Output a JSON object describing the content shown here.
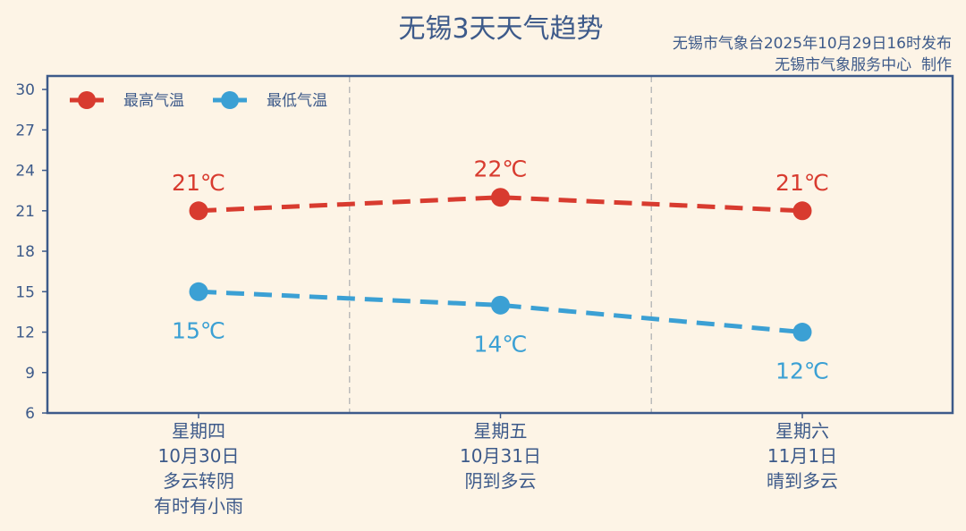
{
  "header": {
    "title": "无锡3天天气趋势",
    "issuer_line": "无锡市气象台2025年10月29日16时发布",
    "producer_line": "无锡市气象服务中心  制作"
  },
  "legend": {
    "high_label": "最高气温",
    "low_label": "最低气温"
  },
  "colors": {
    "background": "#fdf4e6",
    "frame": "#3d5a8a",
    "text": "#3d5a8a",
    "high": "#d83b2f",
    "low": "#3ba0d4",
    "separator": "#bbbbbb"
  },
  "chart_data": {
    "type": "line",
    "categories": [
      {
        "weekday": "星期四",
        "date": "10月30日",
        "weather": [
          "多云转阴",
          "有时有小雨"
        ]
      },
      {
        "weekday": "星期五",
        "date": "10月31日",
        "weather": [
          "阴到多云"
        ]
      },
      {
        "weekday": "星期六",
        "date": "11月1日",
        "weather": [
          "晴到多云"
        ]
      }
    ],
    "series": [
      {
        "name": "最高气温",
        "key": "high",
        "values": [
          21,
          22,
          21
        ],
        "labels": [
          "21℃",
          "22℃",
          "21℃"
        ],
        "label_position": "above"
      },
      {
        "name": "最低气温",
        "key": "low",
        "values": [
          15,
          14,
          12
        ],
        "labels": [
          "15℃",
          "14℃",
          "12℃"
        ],
        "label_position": "below"
      }
    ],
    "ylim": [
      6,
      31
    ],
    "yticks": [
      6,
      9,
      12,
      15,
      18,
      21,
      24,
      27,
      30
    ],
    "ytick_labels": [
      "6",
      "9",
      "12",
      "15",
      "18",
      "21",
      "24",
      "27",
      "30"
    ],
    "grid": false,
    "day_separators": true,
    "legend_position": "top-left",
    "line_style": "dashed"
  }
}
